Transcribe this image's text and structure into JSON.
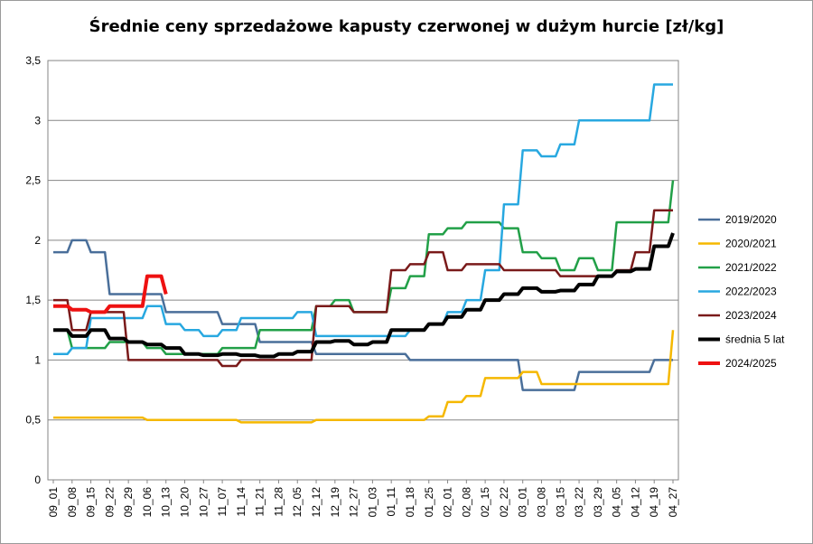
{
  "chart_data": {
    "type": "line",
    "title": "Średnie ceny sprzedażowe kapusty czerwonej w dużym hurcie [zł/kg]",
    "xlabel": "",
    "ylabel": "",
    "ylim": [
      0,
      3.5
    ],
    "yticks": [
      "0",
      "0,5",
      "1",
      "1,5",
      "2",
      "2,5",
      "3",
      "3,5"
    ],
    "grid": true,
    "legend_position": "right",
    "x": [
      "09_01",
      "09_08",
      "09_15",
      "09_22",
      "09_29",
      "10_06",
      "10_13",
      "10_20",
      "10_27",
      "11_07",
      "11_14",
      "11_21",
      "11_28",
      "12_05",
      "12_12",
      "12_19",
      "12_27",
      "01_03",
      "01_11",
      "01_18",
      "01_25",
      "02_01",
      "02_08",
      "02_15",
      "02_22",
      "03_01",
      "03_08",
      "03_15",
      "03_22",
      "03_29",
      "04_05",
      "04_12",
      "04_19",
      "04_27"
    ],
    "series": [
      {
        "name": "2019/2020",
        "color": "#4a6f9a",
        "width": 2.5,
        "values": [
          1.9,
          2.0,
          1.9,
          1.55,
          1.55,
          1.55,
          1.4,
          1.4,
          1.4,
          1.3,
          1.3,
          1.15,
          1.15,
          1.15,
          1.05,
          1.05,
          1.05,
          1.05,
          1.05,
          1.0,
          1.0,
          1.0,
          1.0,
          1.0,
          1.0,
          0.75,
          0.75,
          0.75,
          0.9,
          0.9,
          0.9,
          0.9,
          1.0,
          1.0
        ]
      },
      {
        "name": "2020/2021",
        "color": "#f5b800",
        "width": 2.5,
        "values": [
          0.52,
          0.52,
          0.52,
          0.52,
          0.52,
          0.5,
          0.5,
          0.5,
          0.5,
          0.5,
          0.48,
          0.48,
          0.48,
          0.48,
          0.5,
          0.5,
          0.5,
          0.5,
          0.5,
          0.5,
          0.53,
          0.65,
          0.7,
          0.85,
          0.85,
          0.9,
          0.8,
          0.8,
          0.8,
          0.8,
          0.8,
          0.8,
          0.8,
          1.25
        ]
      },
      {
        "name": "2021/2022",
        "color": "#22a048",
        "width": 2.5,
        "values": [
          1.25,
          1.1,
          1.1,
          1.15,
          1.15,
          1.1,
          1.05,
          1.05,
          1.05,
          1.1,
          1.1,
          1.25,
          1.25,
          1.25,
          1.45,
          1.5,
          1.4,
          1.4,
          1.6,
          1.7,
          2.05,
          2.1,
          2.15,
          2.15,
          2.1,
          1.9,
          1.85,
          1.75,
          1.85,
          1.75,
          2.15,
          2.15,
          2.15,
          2.5
        ]
      },
      {
        "name": "2022/2023",
        "color": "#28a8e0",
        "width": 2.5,
        "values": [
          1.05,
          1.1,
          1.35,
          1.35,
          1.35,
          1.45,
          1.3,
          1.25,
          1.2,
          1.25,
          1.35,
          1.35,
          1.35,
          1.4,
          1.2,
          1.2,
          1.2,
          1.2,
          1.2,
          1.25,
          1.3,
          1.4,
          1.5,
          1.75,
          2.3,
          2.75,
          2.7,
          2.8,
          3.0,
          3.0,
          3.0,
          3.0,
          3.3,
          3.3
        ]
      },
      {
        "name": "2023/2024",
        "color": "#7a1a1a",
        "width": 2.5,
        "values": [
          1.5,
          1.25,
          1.4,
          1.4,
          1.0,
          1.0,
          1.0,
          1.0,
          1.0,
          0.95,
          1.0,
          1.0,
          1.0,
          1.0,
          1.45,
          1.45,
          1.4,
          1.4,
          1.75,
          1.8,
          1.9,
          1.75,
          1.8,
          1.8,
          1.75,
          1.75,
          1.75,
          1.7,
          1.7,
          1.7,
          1.75,
          1.9,
          2.25,
          2.25
        ]
      },
      {
        "name": "średnia 5 lat",
        "color": "#000000",
        "width": 4,
        "values": [
          1.25,
          1.2,
          1.25,
          1.18,
          1.15,
          1.13,
          1.1,
          1.05,
          1.04,
          1.05,
          1.04,
          1.03,
          1.05,
          1.07,
          1.15,
          1.16,
          1.13,
          1.15,
          1.25,
          1.25,
          1.3,
          1.36,
          1.42,
          1.5,
          1.55,
          1.6,
          1.57,
          1.58,
          1.63,
          1.7,
          1.74,
          1.76,
          1.95,
          2.06
        ]
      },
      {
        "name": "2024/2025",
        "color": "#ee1111",
        "width": 4,
        "values": [
          1.45,
          1.42,
          1.4,
          1.45,
          1.45,
          1.7,
          1.55,
          null,
          null,
          null,
          null,
          null,
          null,
          null,
          null,
          null,
          null,
          null,
          null,
          null,
          null,
          null,
          null,
          null,
          null,
          null,
          null,
          null,
          null,
          null,
          null,
          null,
          null,
          null
        ]
      }
    ]
  }
}
